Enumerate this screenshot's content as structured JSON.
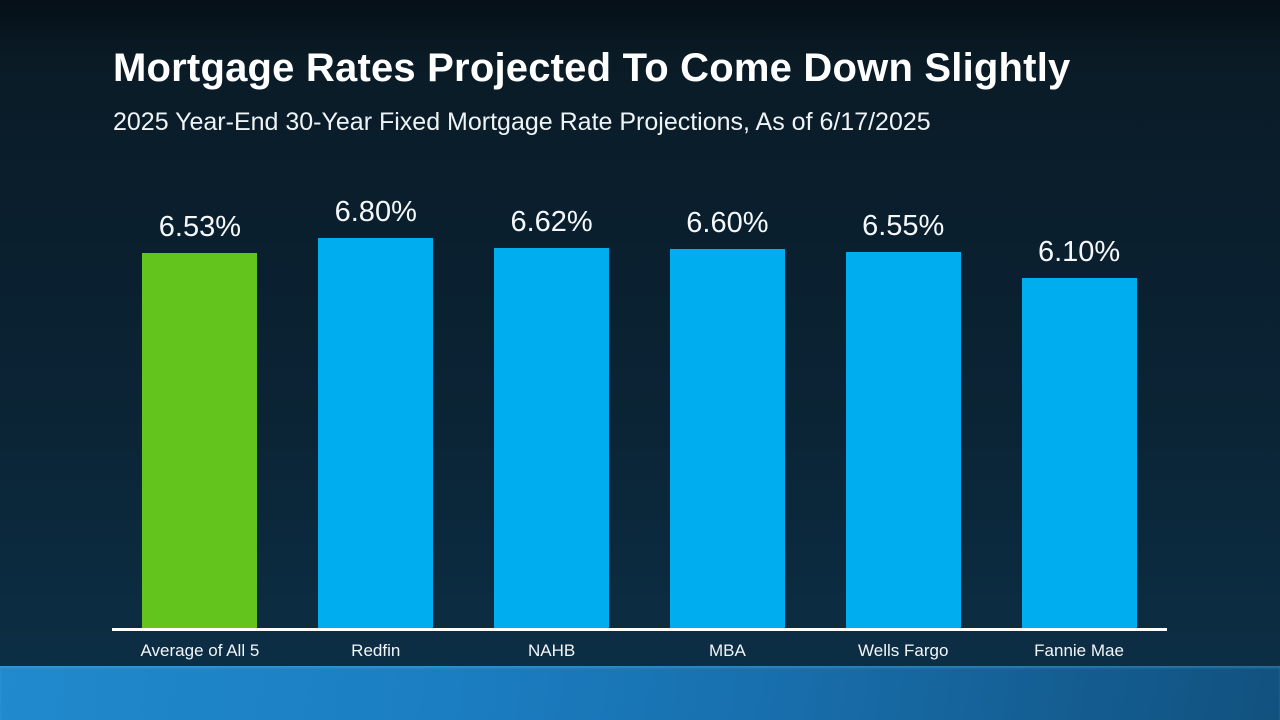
{
  "slide": {
    "title": "Mortgage Rates Projected To Come Down Slightly",
    "subtitle": "2025 Year-End 30-Year Fixed Mortgage Rate Projections, As of 6/17/2025"
  },
  "chart_data": {
    "type": "bar",
    "title": "Mortgage Rates Projected To Come Down Slightly",
    "subtitle": "2025 Year-End 30-Year Fixed Mortgage Rate Projections, As of 6/17/2025",
    "categories": [
      "Average of All 5",
      "Redfin",
      "NAHB",
      "MBA",
      "Wells Fargo",
      "Fannie Mae"
    ],
    "values": [
      6.53,
      6.8,
      6.62,
      6.6,
      6.55,
      6.1
    ],
    "value_labels": [
      "6.53%",
      "6.80%",
      "6.62%",
      "6.60%",
      "6.55%",
      "6.10%"
    ],
    "bar_colors": [
      "#62c41c",
      "#00aeef",
      "#00aeef",
      "#00aeef",
      "#00aeef",
      "#00aeef"
    ],
    "highlight_color": "#62c41c",
    "default_color": "#00aeef",
    "xlabel": "",
    "ylabel": "",
    "ylim": [
      0,
      6.8
    ],
    "grid": false,
    "legend": null,
    "baseline_axis_color": "#ffffff",
    "value_label_color": "#f5f8fa",
    "category_label_color": "#f2f6f8"
  },
  "colors": {
    "background_top": "#0a1b26",
    "background_bottom": "#0d3048",
    "footer_band_left": "#1b7ec2",
    "footer_band_right": "#11517e",
    "title_text": "#ffffff"
  }
}
